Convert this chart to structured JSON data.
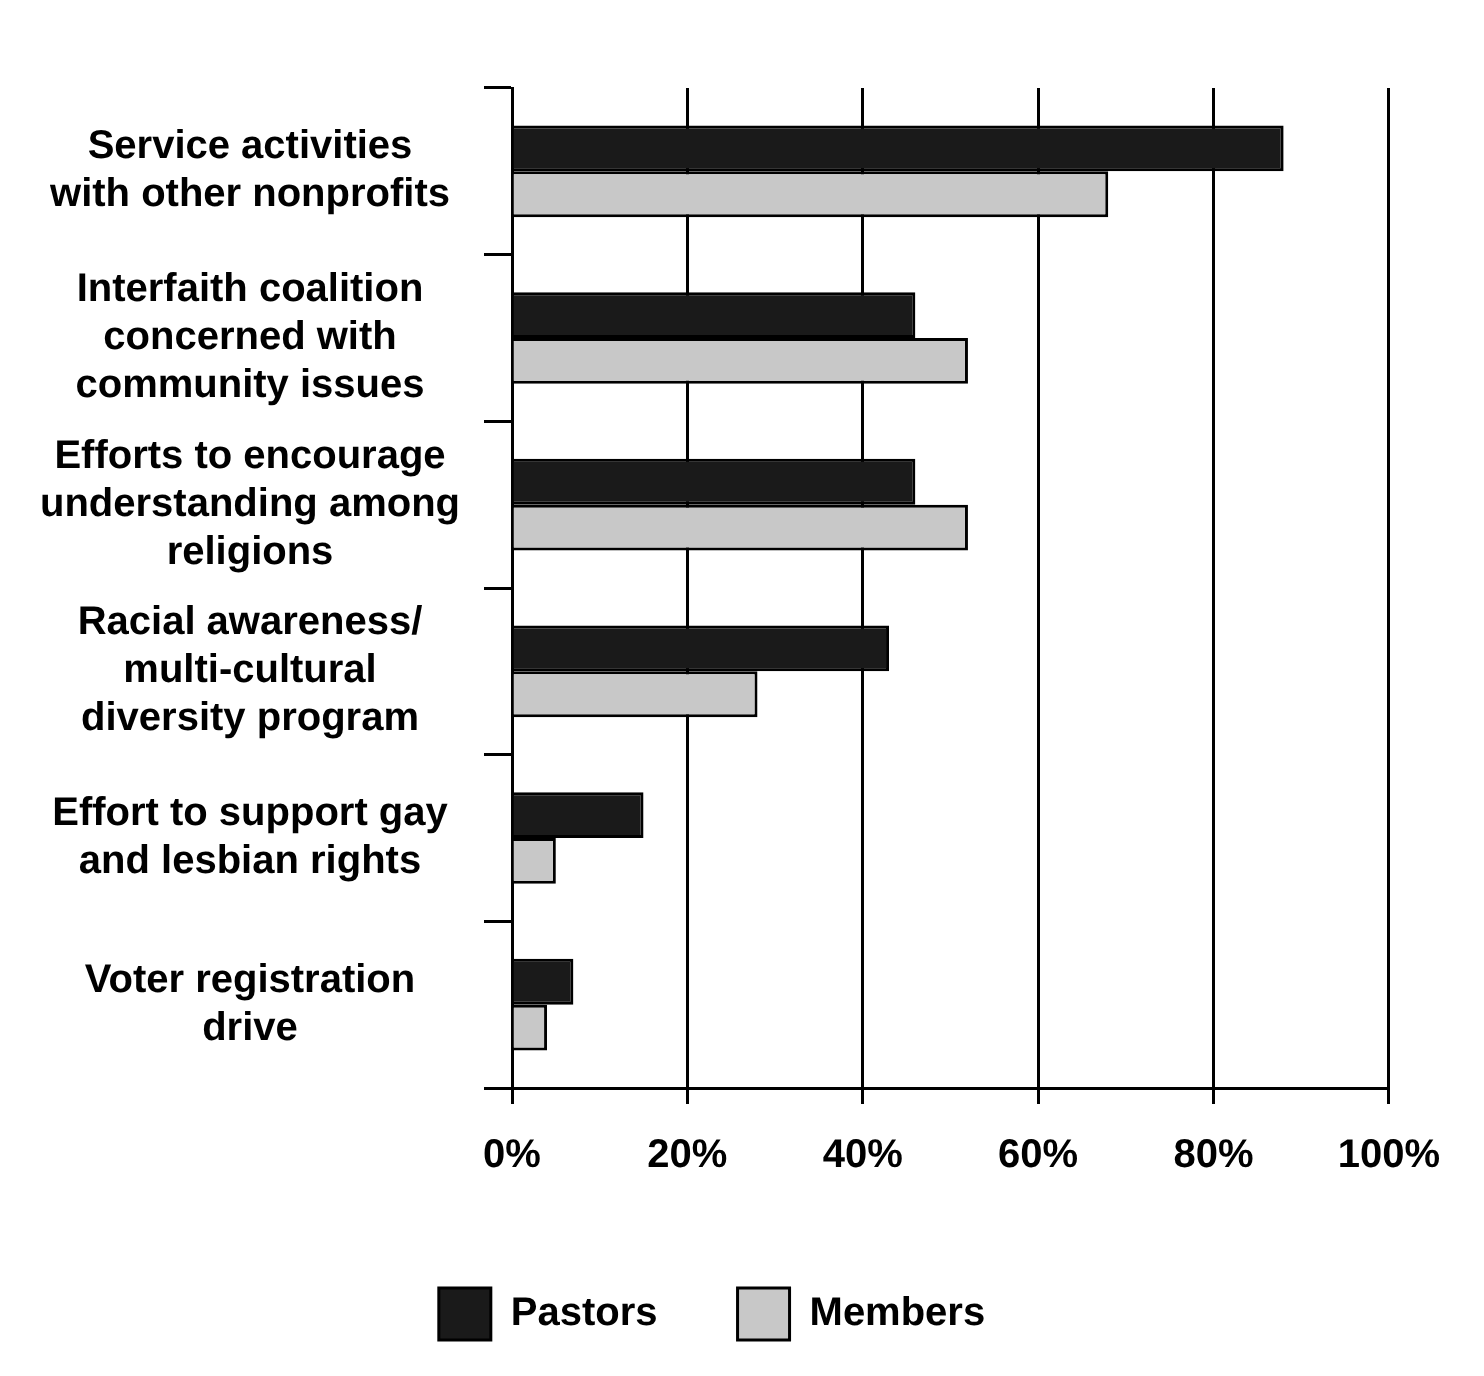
{
  "chart_data": {
    "type": "bar",
    "orientation": "horizontal",
    "categories": [
      "Service activities with other nonprofits",
      "Interfaith coalition concerned with community issues",
      "Efforts to encourage understanding among religions",
      "Racial awareness/ multi-cultural diversity program",
      "Effort to support gay and lesbian rights",
      "Voter registration drive"
    ],
    "series": [
      {
        "name": "Pastors",
        "color": "#1a1a1a",
        "values": [
          88,
          46,
          46,
          43,
          15,
          7
        ]
      },
      {
        "name": "Members",
        "color": "#c8c8c8",
        "values": [
          68,
          52,
          52,
          28,
          5,
          4
        ]
      }
    ],
    "xlim": [
      0,
      100
    ],
    "xticks": [
      {
        "value": 0,
        "label": "0%"
      },
      {
        "value": 20,
        "label": "20%"
      },
      {
        "value": 40,
        "label": "40%"
      },
      {
        "value": 60,
        "label": "60%"
      },
      {
        "value": 80,
        "label": "80%"
      },
      {
        "value": 100,
        "label": "100%"
      }
    ],
    "grid": "x",
    "legend": "bottom"
  }
}
